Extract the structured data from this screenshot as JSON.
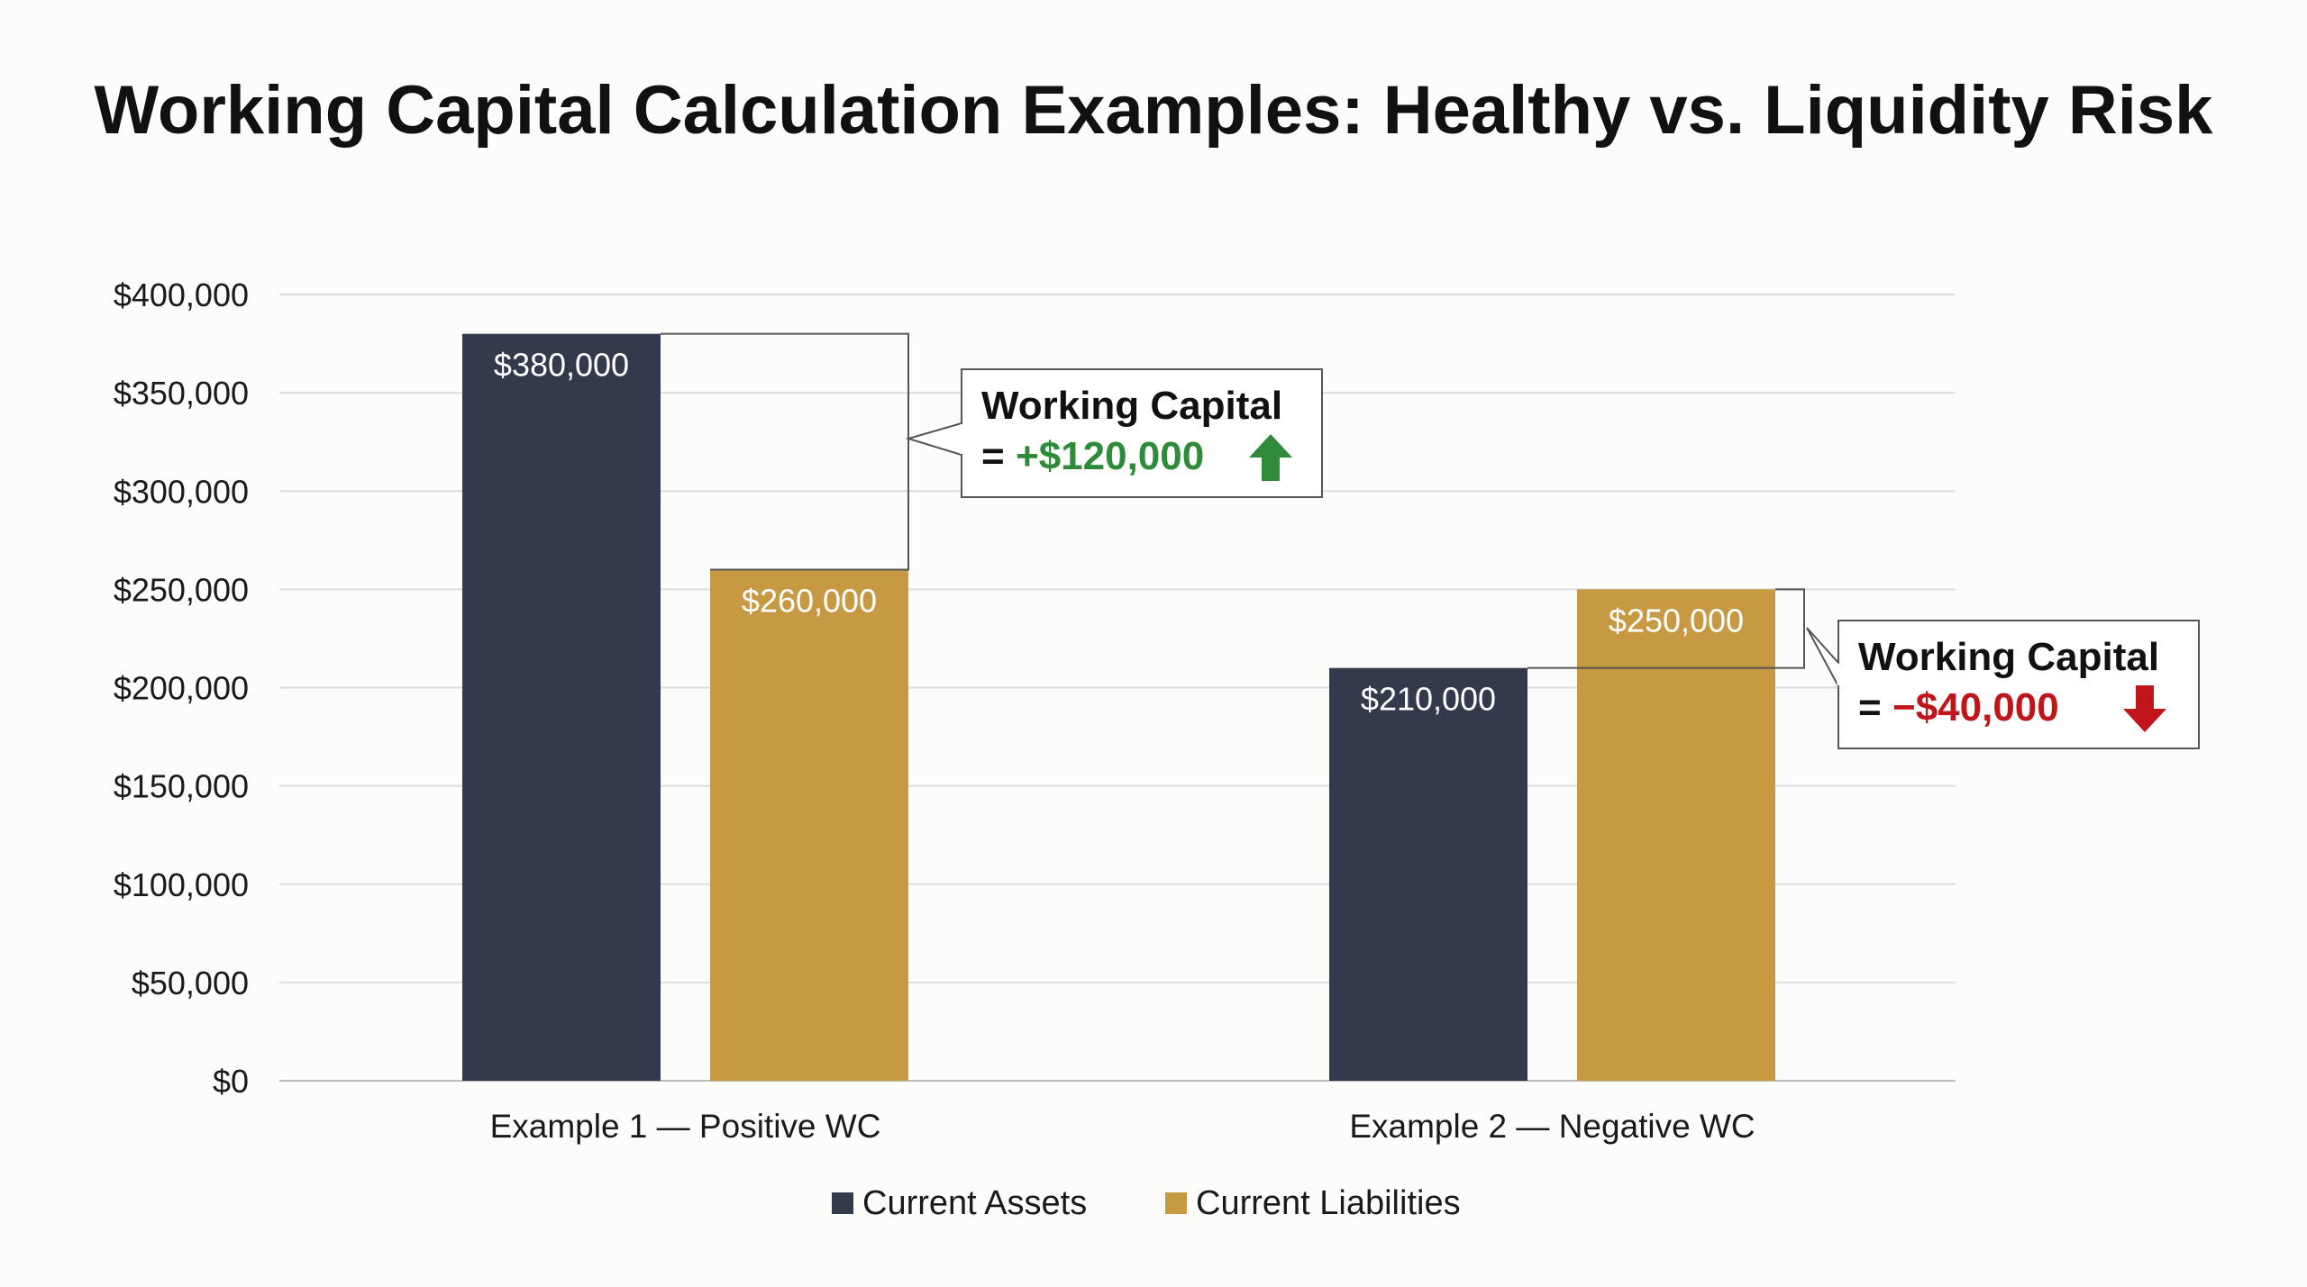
{
  "chart_data": {
    "type": "bar",
    "title": "Working Capital Calculation Examples: Healthy vs. Liquidity Risk",
    "categories": [
      "Example 1 — Positive WC",
      "Example 2 — Negative WC"
    ],
    "series": [
      {
        "name": "Current Assets",
        "values": [
          380000,
          210000
        ],
        "color": "#323a4c"
      },
      {
        "name": "Current Liabilities",
        "values": [
          260000,
          250000
        ],
        "color": "#c79943"
      }
    ],
    "data_labels": [
      [
        "$380,000",
        "$210,000"
      ],
      [
        "$260,000",
        "$250,000"
      ]
    ],
    "ylim": [
      0,
      400000
    ],
    "yticks": [
      0,
      50000,
      100000,
      150000,
      200000,
      250000,
      300000,
      350000,
      400000
    ],
    "ytick_labels": [
      "$0",
      "$50,000",
      "$100,000",
      "$150,000",
      "$200,000",
      "$250,000",
      "$300,000",
      "$350,000",
      "$400,000"
    ],
    "xlabel": "",
    "ylabel": "",
    "grid": true,
    "legend_position": "bottom-center",
    "annotations": [
      {
        "title": "Working Capital",
        "prefix": "=",
        "value": "+$120,000",
        "direction": "up",
        "color": "#2e8b3a",
        "category_index": 0
      },
      {
        "title": "Working Capital",
        "prefix": "=",
        "value": "−$40,000",
        "direction": "down",
        "color": "#c0161b",
        "category_index": 1
      }
    ]
  }
}
